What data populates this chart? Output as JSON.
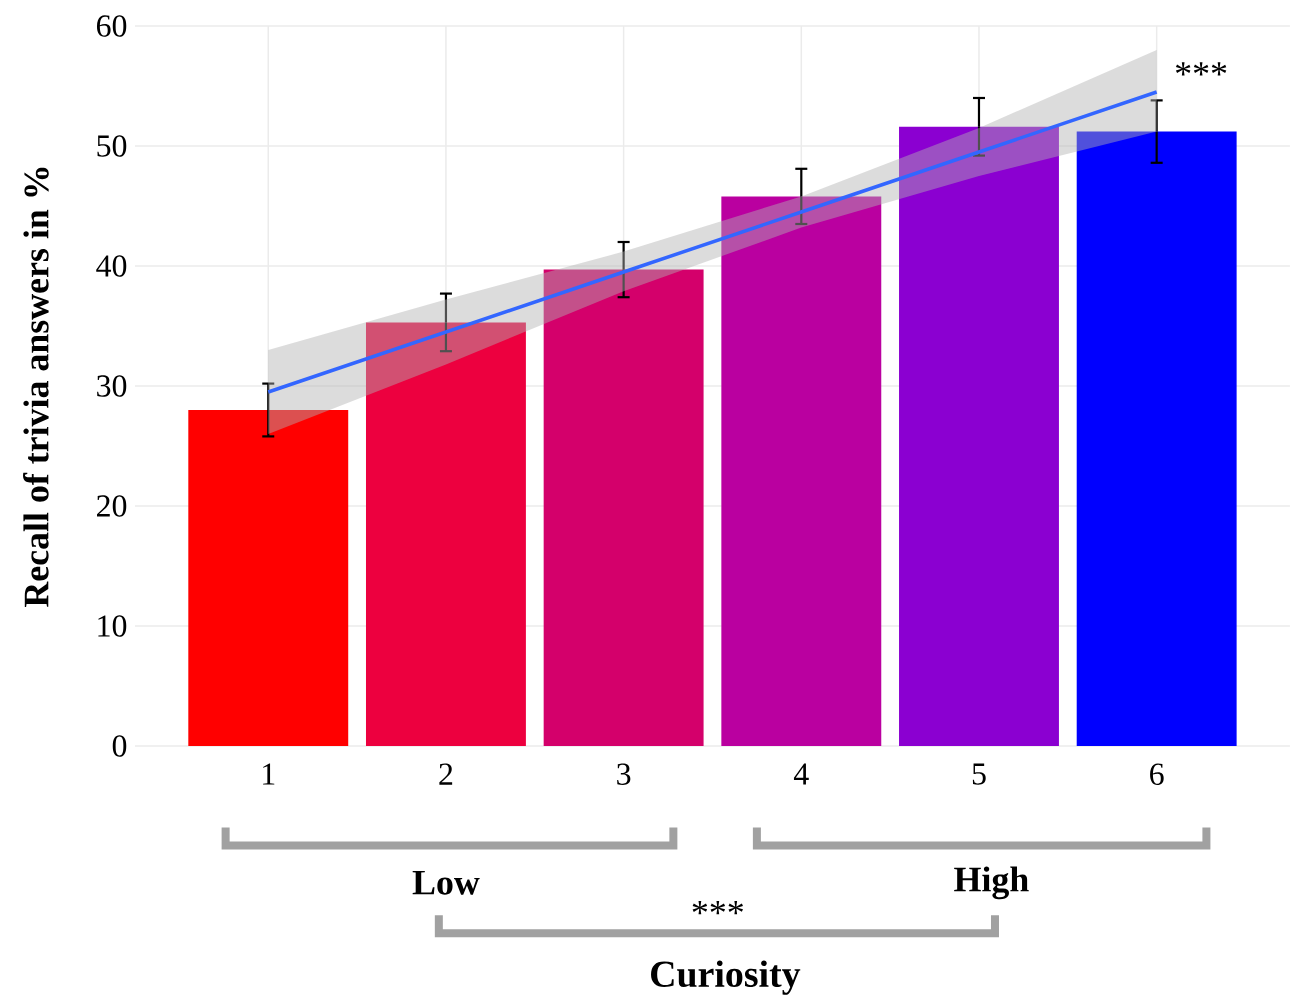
{
  "chart_data": {
    "type": "bar",
    "x": [
      1,
      2,
      3,
      4,
      5,
      6
    ],
    "xlim": [
      0.25,
      6.75
    ],
    "xticks": [
      1,
      2,
      3,
      4,
      5,
      6
    ],
    "ylim": [
      0,
      60
    ],
    "yticks": [
      0,
      10,
      20,
      30,
      40,
      50,
      60
    ],
    "grid": true,
    "ylabel": "Recall of trivia answers in %",
    "xlabel": "Curiosity",
    "annotations": [
      "***",
      "Low",
      "High",
      "***"
    ],
    "series": [
      {
        "values": [
          28.0,
          35.3,
          39.7,
          45.8,
          51.6,
          51.2
        ],
        "colors": [
          "#ff0000",
          "#ed003f",
          "#d4006b",
          "#ba00a0",
          "#8b00d1",
          "#0000ff"
        ],
        "errors": [
          2.2,
          2.4,
          2.3,
          2.3,
          2.4,
          2.6
        ]
      },
      {
        "type": "line",
        "x": [
          1,
          2,
          3,
          4,
          5,
          6
        ],
        "values": [
          29.5,
          34.5,
          39.5,
          44.5,
          49.5,
          54.5
        ],
        "lower": [
          26.0,
          31.8,
          37.9,
          43.2,
          47.5,
          51.2
        ],
        "upper": [
          33.0,
          37.2,
          41.2,
          45.8,
          51.5,
          58.0
        ],
        "color": "#3366ff"
      }
    ]
  }
}
